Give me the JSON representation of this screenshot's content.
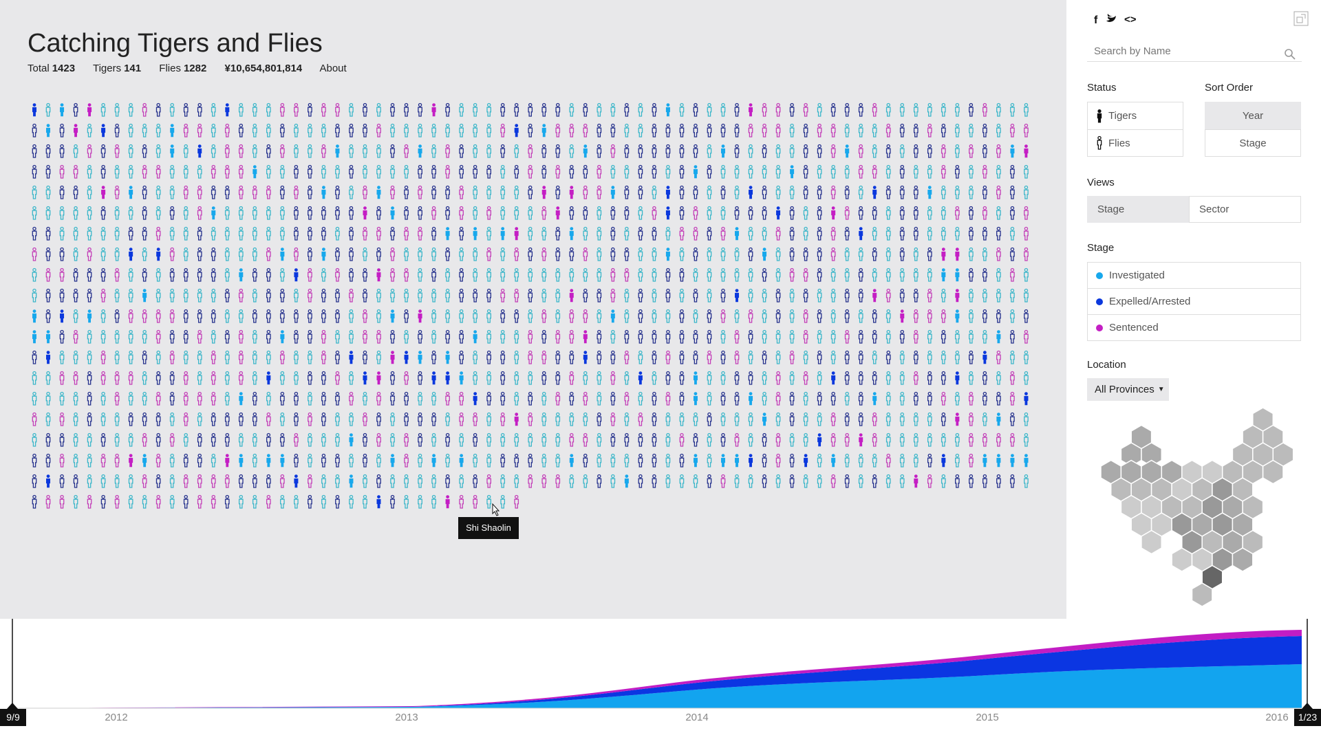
{
  "header": {
    "title": "Catching Tigers and Flies",
    "stats": [
      {
        "label": "Total",
        "value": 1423
      },
      {
        "label": "Tigers",
        "value": 141
      },
      {
        "label": "Flies",
        "value": 1282
      }
    ],
    "amount": "¥10,654,801,814",
    "about": "About"
  },
  "tooltip": "Shi Shaolin",
  "sidebar": {
    "search_placeholder": "Search by Name",
    "status": {
      "label": "Status",
      "options": [
        "Tigers",
        "Flies"
      ]
    },
    "sort": {
      "label": "Sort Order",
      "options": [
        "Year",
        "Stage"
      ]
    },
    "views": {
      "label": "Views",
      "options": [
        "Stage",
        "Sector"
      ]
    },
    "stage": {
      "label": "Stage",
      "items": [
        "Investigated",
        "Expelled/Arrested",
        "Sentenced"
      ]
    },
    "location": {
      "label": "Location",
      "dropdown": "All Provinces"
    }
  },
  "timeline": {
    "ticks": [
      "2012",
      "2013",
      "2014",
      "2015",
      "2016"
    ],
    "start": "9/9",
    "end": "1/23"
  }
}
